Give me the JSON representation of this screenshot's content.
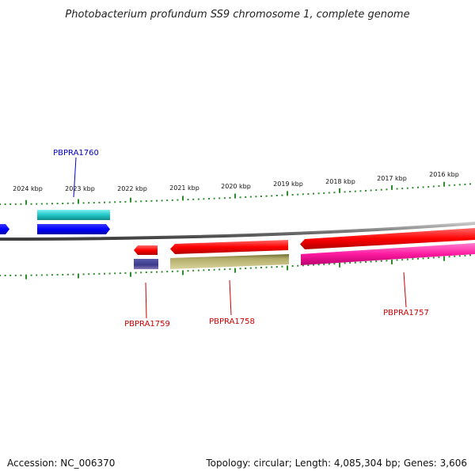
{
  "title": "Photobacterium profundum SS9 chromosome 1, complete genome",
  "ruler_labels": [
    "2024 kbp",
    "2023 kbp",
    "2022 kbp",
    "2021 kbp",
    "2020 kbp",
    "2019 kbp",
    "2018 kbp",
    "2017 kbp",
    "2016 kbp"
  ],
  "genes": [
    {
      "id": "PBPRA1760",
      "strand": "forward",
      "color": "#0000cc"
    },
    {
      "id": "PBPRA1759",
      "strand": "reverse",
      "color": "#cc0000"
    },
    {
      "id": "PBPRA1758",
      "strand": "reverse",
      "color": "#cc0000"
    },
    {
      "id": "PBPRA1757",
      "strand": "reverse",
      "color": "#cc0000"
    }
  ],
  "colors": {
    "tick": "#2e8b2e",
    "backbone": "#8c8c8c",
    "cds_forward": "#0000ff",
    "rna_forward": "#22c8c8",
    "cds_reverse": "#ff0000",
    "cds_reverse_pink": "#ff1aa0",
    "gene_olive": "#b3ad6b",
    "gene_navy": "#3b3b8a"
  },
  "footer": {
    "accession": "Accession: NC_006370",
    "summary": "Topology: circular; Length: 4,085,304 bp; Genes: 3,606"
  }
}
